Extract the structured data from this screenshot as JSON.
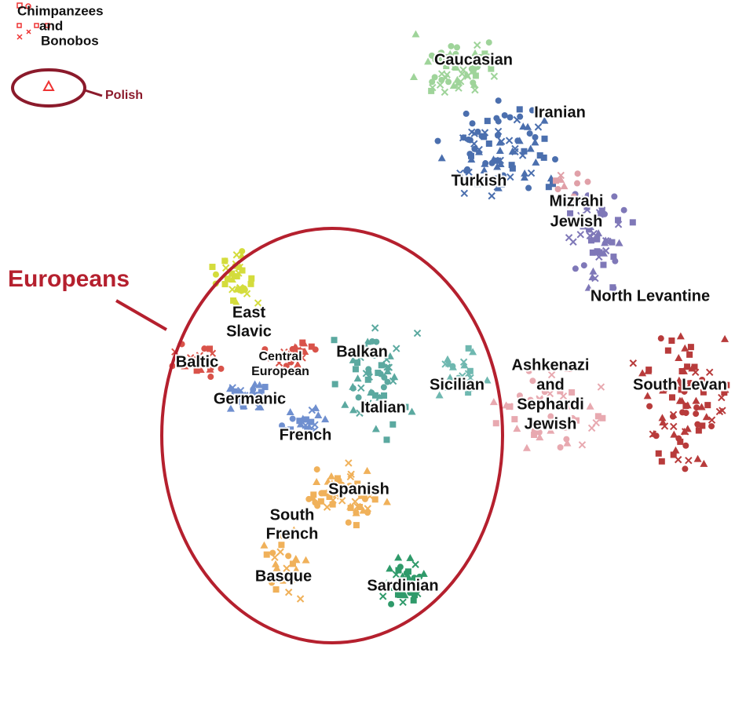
{
  "outgroup": {
    "lines": [
      "Chimpanzees",
      "and",
      "Bonobos"
    ]
  },
  "highlight": "Polish",
  "group_label": "Europeans",
  "labels": [
    {
      "lines": [
        "Caucasian"
      ]
    },
    {
      "lines": [
        "Iranian"
      ]
    },
    {
      "lines": [
        "Turkish"
      ]
    },
    {
      "lines": [
        "Mizrahi",
        "Jewish"
      ]
    },
    {
      "lines": [
        "North Levantine"
      ]
    },
    {
      "lines": [
        "South Levan"
      ]
    },
    {
      "lines": [
        "East",
        "Slavic"
      ]
    },
    {
      "lines": [
        "Central",
        "European"
      ]
    },
    {
      "lines": [
        "Baltic"
      ]
    },
    {
      "lines": [
        "Balkan"
      ]
    },
    {
      "lines": [
        "Sicilian"
      ]
    },
    {
      "lines": [
        "Ashkenazi",
        "and",
        "Sephardi",
        "Jewish"
      ]
    },
    {
      "lines": [
        "Germanic"
      ]
    },
    {
      "lines": [
        "Italian"
      ]
    },
    {
      "lines": [
        "French"
      ]
    },
    {
      "lines": [
        "Spanish"
      ]
    },
    {
      "lines": [
        "South",
        "French"
      ]
    },
    {
      "lines": [
        "Basque"
      ]
    },
    {
      "lines": [
        "Sardinian"
      ]
    }
  ]
}
